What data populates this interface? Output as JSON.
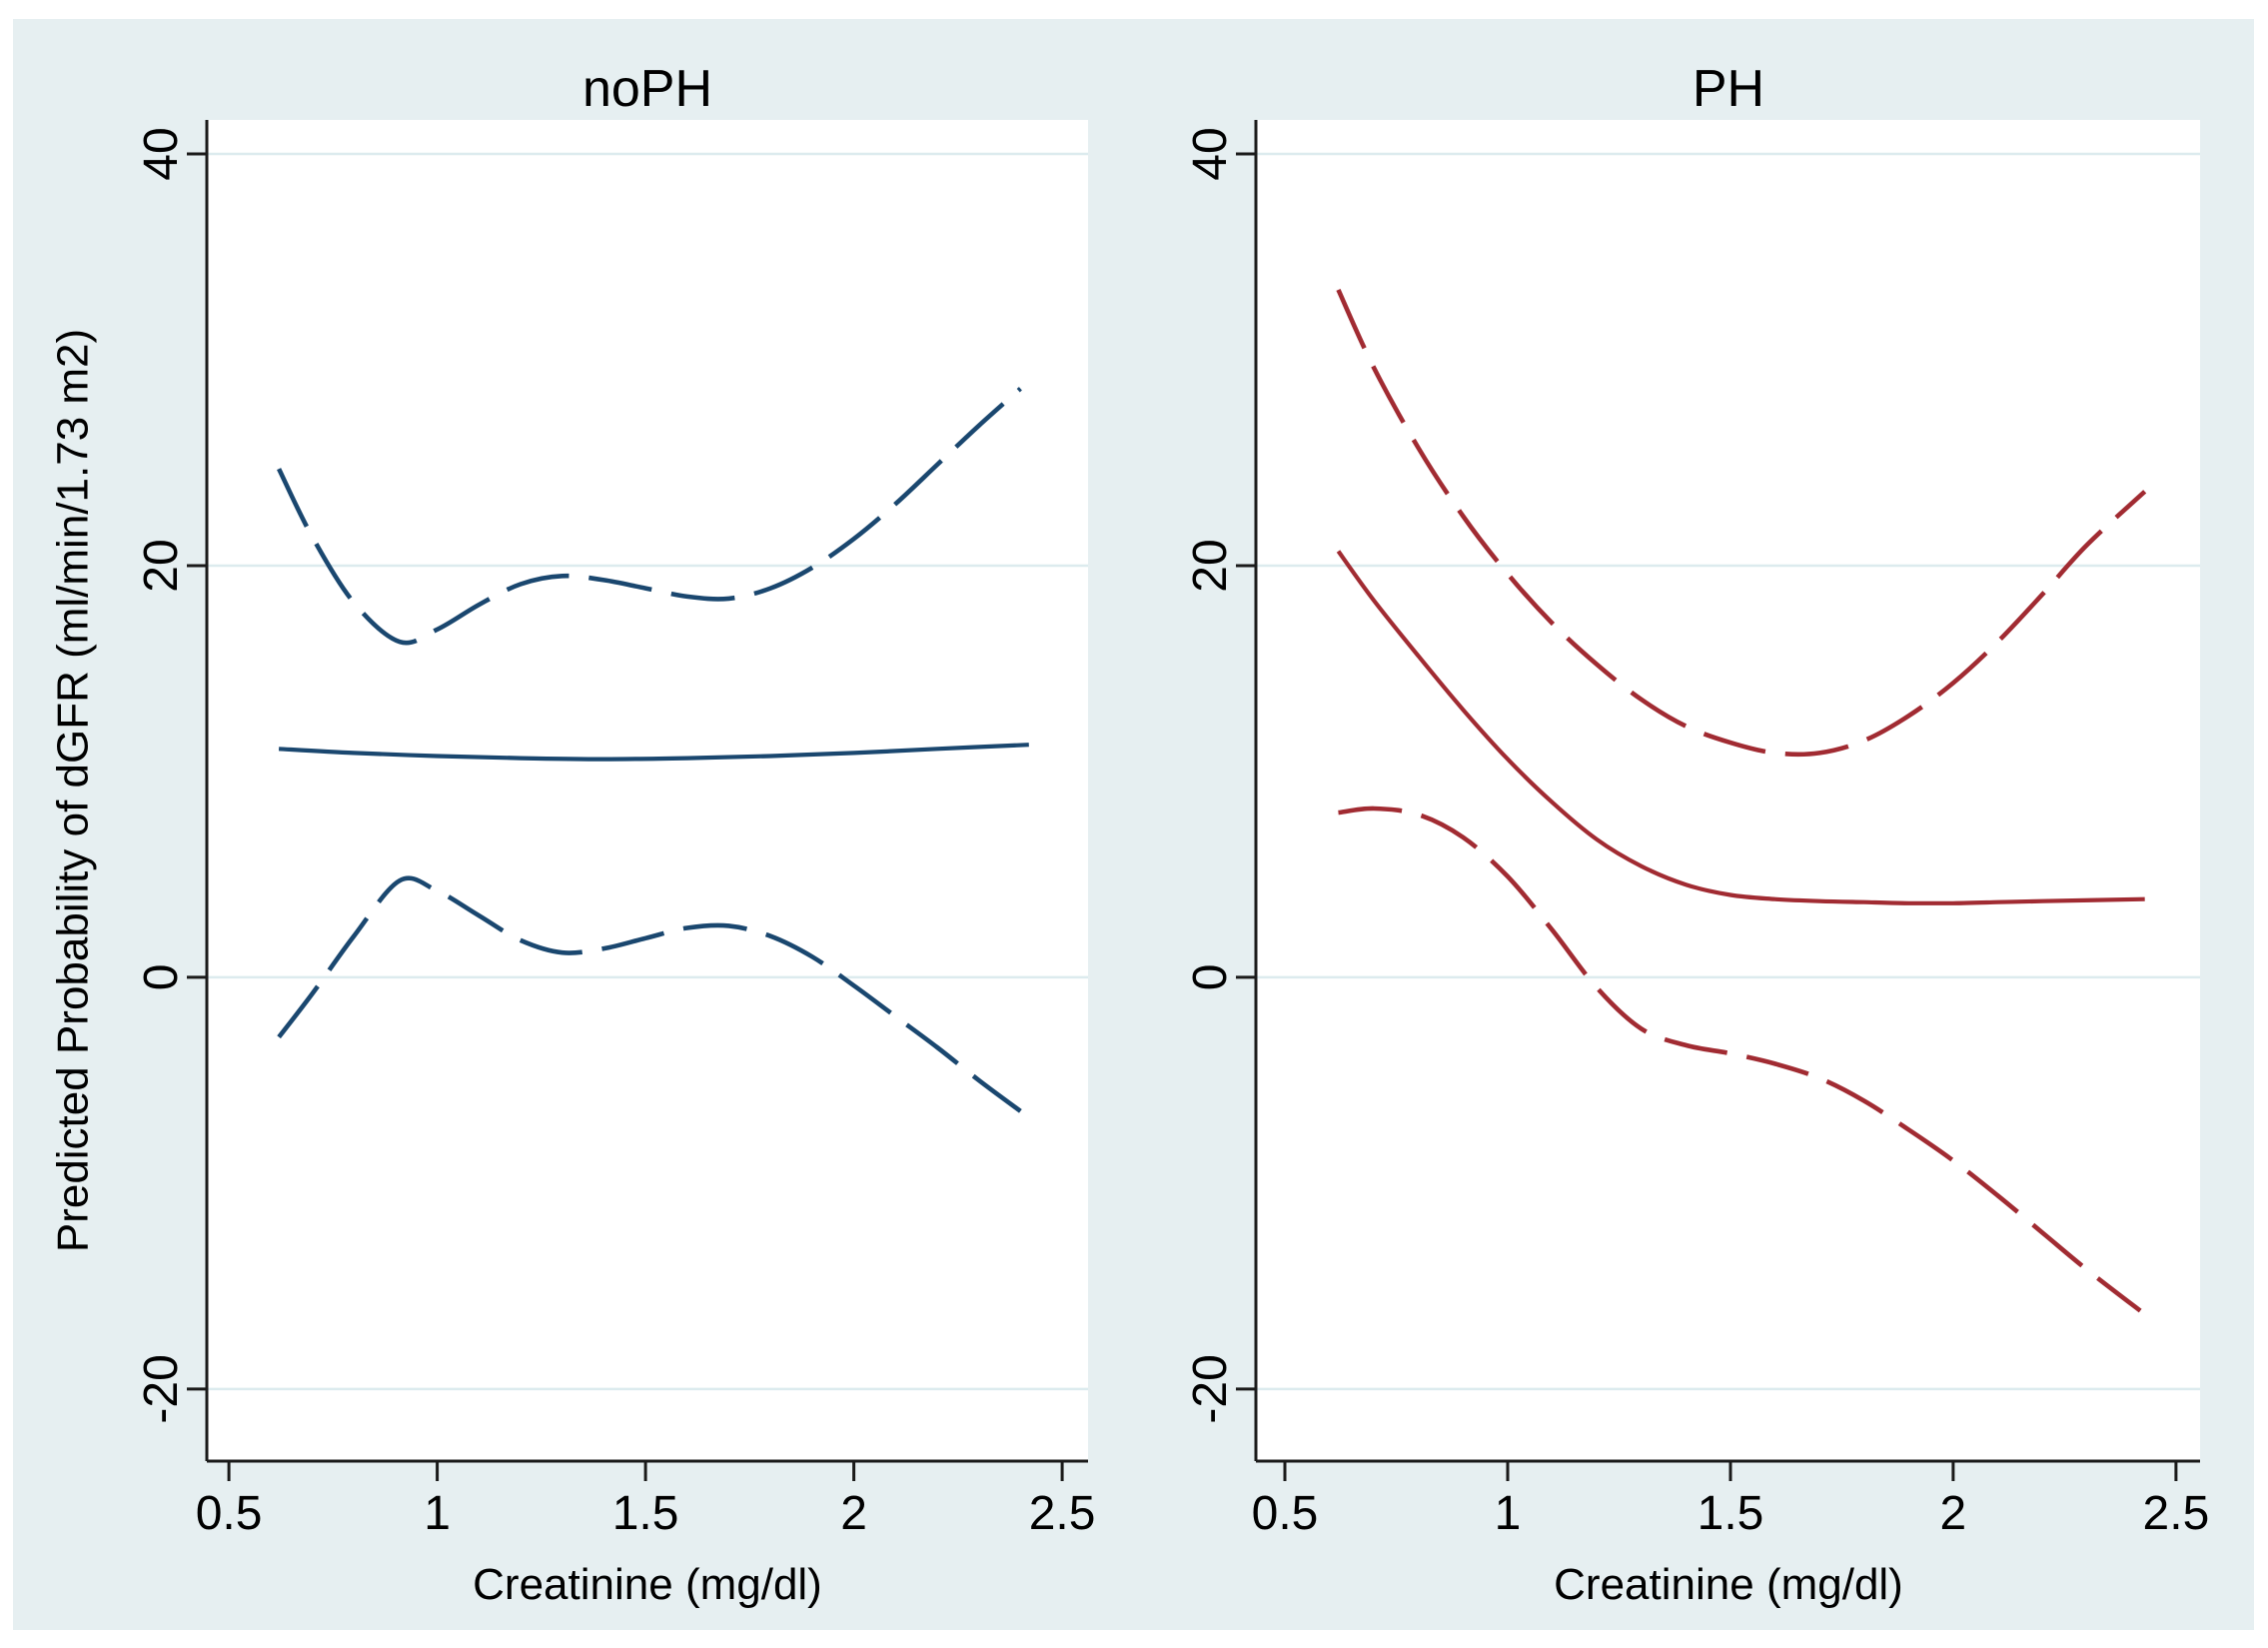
{
  "figure": {
    "background": "#ffffff",
    "canvas_bg": "#e6eff1",
    "plot_bg": "#ffffff",
    "grid_color": "#dcebee",
    "axis_color": "#1a1a1a",
    "text_color": "#000000",
    "navy": "#1a476f",
    "maroon": "#a12b32"
  },
  "chart_data": [
    {
      "type": "line",
      "title": "noPH",
      "xlabel": "Creatinine (mg/dl)",
      "ylabel": "Predicted Probability of dGFR (ml/min/1.73 m2)",
      "color": "#1a476f",
      "grid": true,
      "legend": "none",
      "xlim": [
        0.447,
        2.562
      ],
      "ylim": [
        -23.5,
        41.65
      ],
      "x_ticks": [
        0.5,
        1,
        1.5,
        2,
        2.5
      ],
      "x_tick_labels": [
        "0.5",
        "1",
        "1.5",
        "2",
        "2.5"
      ],
      "y_ticks": [
        40,
        20,
        0,
        -20
      ],
      "y_tick_labels": [
        "40",
        "20",
        "0",
        "-20"
      ],
      "series": [
        {
          "name": "upper-ci",
          "style": "dashed",
          "points": [
            [
              0.62,
              24.7
            ],
            [
              0.7,
              21.4
            ],
            [
              0.8,
              18.2
            ],
            [
              0.91,
              16.3
            ],
            [
              1.0,
              16.9
            ],
            [
              1.1,
              18.1
            ],
            [
              1.2,
              19.1
            ],
            [
              1.3,
              19.5
            ],
            [
              1.4,
              19.3
            ],
            [
              1.5,
              18.9
            ],
            [
              1.6,
              18.5
            ],
            [
              1.7,
              18.4
            ],
            [
              1.8,
              18.9
            ],
            [
              1.9,
              19.9
            ],
            [
              2.0,
              21.3
            ],
            [
              2.1,
              23.0
            ],
            [
              2.2,
              24.9
            ],
            [
              2.3,
              26.8
            ],
            [
              2.4,
              28.6
            ]
          ]
        },
        {
          "name": "fit",
          "style": "solid",
          "points": [
            [
              0.62,
              11.1
            ],
            [
              0.8,
              10.9
            ],
            [
              1.0,
              10.75
            ],
            [
              1.2,
              10.65
            ],
            [
              1.4,
              10.6
            ],
            [
              1.6,
              10.65
            ],
            [
              1.8,
              10.75
            ],
            [
              2.0,
              10.9
            ],
            [
              2.2,
              11.1
            ],
            [
              2.42,
              11.3
            ]
          ]
        },
        {
          "name": "lower-ci",
          "style": "dashed",
          "points": [
            [
              0.62,
              -2.9
            ],
            [
              0.7,
              -0.8
            ],
            [
              0.8,
              2.0
            ],
            [
              0.91,
              4.7
            ],
            [
              1.0,
              4.2
            ],
            [
              1.1,
              3.0
            ],
            [
              1.2,
              1.8
            ],
            [
              1.3,
              1.2
            ],
            [
              1.4,
              1.4
            ],
            [
              1.5,
              1.9
            ],
            [
              1.6,
              2.4
            ],
            [
              1.7,
              2.5
            ],
            [
              1.8,
              2.0
            ],
            [
              1.9,
              1.0
            ],
            [
              2.0,
              -0.4
            ],
            [
              2.1,
              -1.9
            ],
            [
              2.2,
              -3.4
            ],
            [
              2.3,
              -5.0
            ],
            [
              2.4,
              -6.5
            ]
          ]
        }
      ]
    },
    {
      "type": "line",
      "title": "PH",
      "xlabel": "Creatinine (mg/dl)",
      "ylabel": "Predicted Probability of dGFR (ml/min/1.73 m2)",
      "color": "#a12b32",
      "grid": true,
      "legend": "none",
      "xlim": [
        0.435,
        2.554
      ],
      "ylim": [
        -23.5,
        41.65
      ],
      "x_ticks": [
        0.5,
        1,
        1.5,
        2,
        2.5
      ],
      "x_tick_labels": [
        "0.5",
        "1",
        "1.5",
        "2",
        "2.5"
      ],
      "y_ticks": [
        40,
        20,
        0,
        -20
      ],
      "y_tick_labels": [
        "40",
        "20",
        "0",
        "-20"
      ],
      "series": [
        {
          "name": "upper-ci",
          "style": "dashed",
          "points": [
            [
              0.62,
              33.4
            ],
            [
              0.7,
              29.6
            ],
            [
              0.8,
              25.7
            ],
            [
              0.9,
              22.4
            ],
            [
              1.0,
              19.6
            ],
            [
              1.1,
              17.2
            ],
            [
              1.2,
              15.2
            ],
            [
              1.3,
              13.5
            ],
            [
              1.4,
              12.2
            ],
            [
              1.5,
              11.4
            ],
            [
              1.6,
              10.9
            ],
            [
              1.7,
              10.9
            ],
            [
              1.8,
              11.5
            ],
            [
              1.9,
              12.7
            ],
            [
              2.0,
              14.3
            ],
            [
              2.1,
              16.3
            ],
            [
              2.2,
              18.6
            ],
            [
              2.3,
              21.0
            ],
            [
              2.43,
              23.6
            ]
          ]
        },
        {
          "name": "fit",
          "style": "solid",
          "points": [
            [
              0.62,
              20.7
            ],
            [
              0.7,
              18.3
            ],
            [
              0.8,
              15.6
            ],
            [
              0.9,
              13.0
            ],
            [
              1.0,
              10.6
            ],
            [
              1.1,
              8.5
            ],
            [
              1.2,
              6.7
            ],
            [
              1.3,
              5.4
            ],
            [
              1.4,
              4.5
            ],
            [
              1.5,
              4.0
            ],
            [
              1.6,
              3.8
            ],
            [
              1.7,
              3.7
            ],
            [
              1.8,
              3.65
            ],
            [
              1.9,
              3.6
            ],
            [
              2.0,
              3.6
            ],
            [
              2.1,
              3.65
            ],
            [
              2.2,
              3.7
            ],
            [
              2.43,
              3.8
            ]
          ]
        },
        {
          "name": "lower-ci",
          "style": "dashed",
          "points": [
            [
              0.62,
              8.0
            ],
            [
              0.7,
              8.2
            ],
            [
              0.8,
              7.9
            ],
            [
              0.9,
              6.8
            ],
            [
              1.0,
              4.9
            ],
            [
              1.1,
              2.3
            ],
            [
              1.2,
              -0.5
            ],
            [
              1.3,
              -2.5
            ],
            [
              1.4,
              -3.3
            ],
            [
              1.5,
              -3.7
            ],
            [
              1.6,
              -4.2
            ],
            [
              1.7,
              -4.9
            ],
            [
              1.8,
              -6.0
            ],
            [
              1.9,
              -7.4
            ],
            [
              2.0,
              -8.9
            ],
            [
              2.1,
              -10.6
            ],
            [
              2.2,
              -12.4
            ],
            [
              2.3,
              -14.2
            ],
            [
              2.42,
              -16.2
            ]
          ]
        }
      ]
    }
  ]
}
